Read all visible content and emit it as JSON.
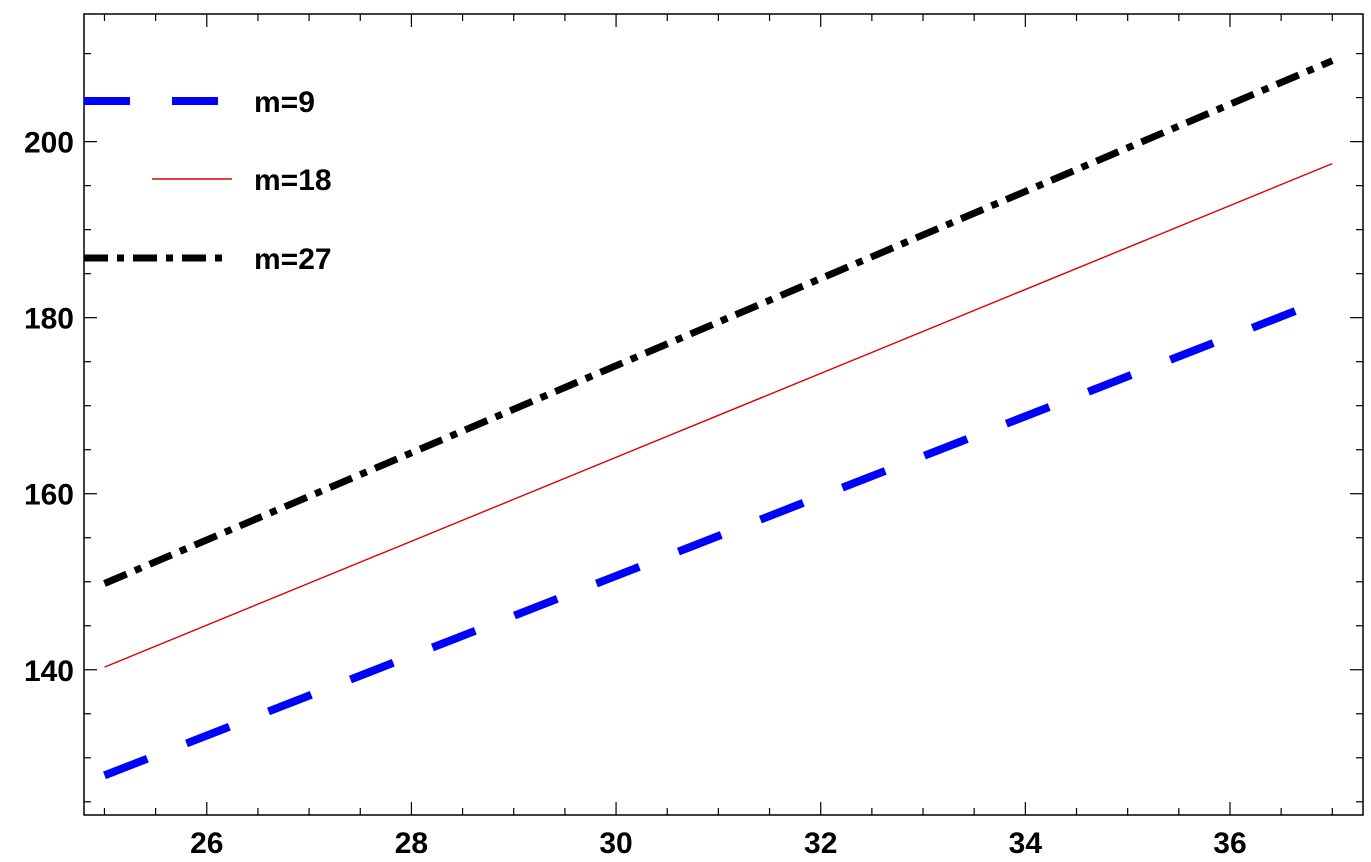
{
  "chart_data": {
    "type": "line",
    "title": "",
    "xlabel": "",
    "ylabel": "",
    "xlim": [
      24.8,
      37.3
    ],
    "ylim": [
      123.5,
      214.5
    ],
    "xticks": [
      26,
      28,
      30,
      32,
      34,
      36
    ],
    "xtick_labels": [
      "26",
      "28",
      "30",
      "32",
      "34",
      "36"
    ],
    "yticks": [
      140,
      160,
      180,
      200
    ],
    "ytick_labels": [
      "140",
      "160",
      "180",
      "200"
    ],
    "grid": false,
    "legend_position": "top-left",
    "series": [
      {
        "name": "m=9",
        "color": "#0000ff",
        "style": "dashed",
        "x": [
          25,
          37
        ],
        "y": [
          128.0,
          182.4
        ]
      },
      {
        "name": "m=18",
        "color": "#e00000",
        "style": "solid",
        "x": [
          25,
          37
        ],
        "y": [
          140.3,
          197.5
        ]
      },
      {
        "name": "m=27",
        "color": "#000000",
        "style": "dashdot",
        "x": [
          25,
          37
        ],
        "y": [
          149.8,
          209.2
        ]
      }
    ]
  }
}
